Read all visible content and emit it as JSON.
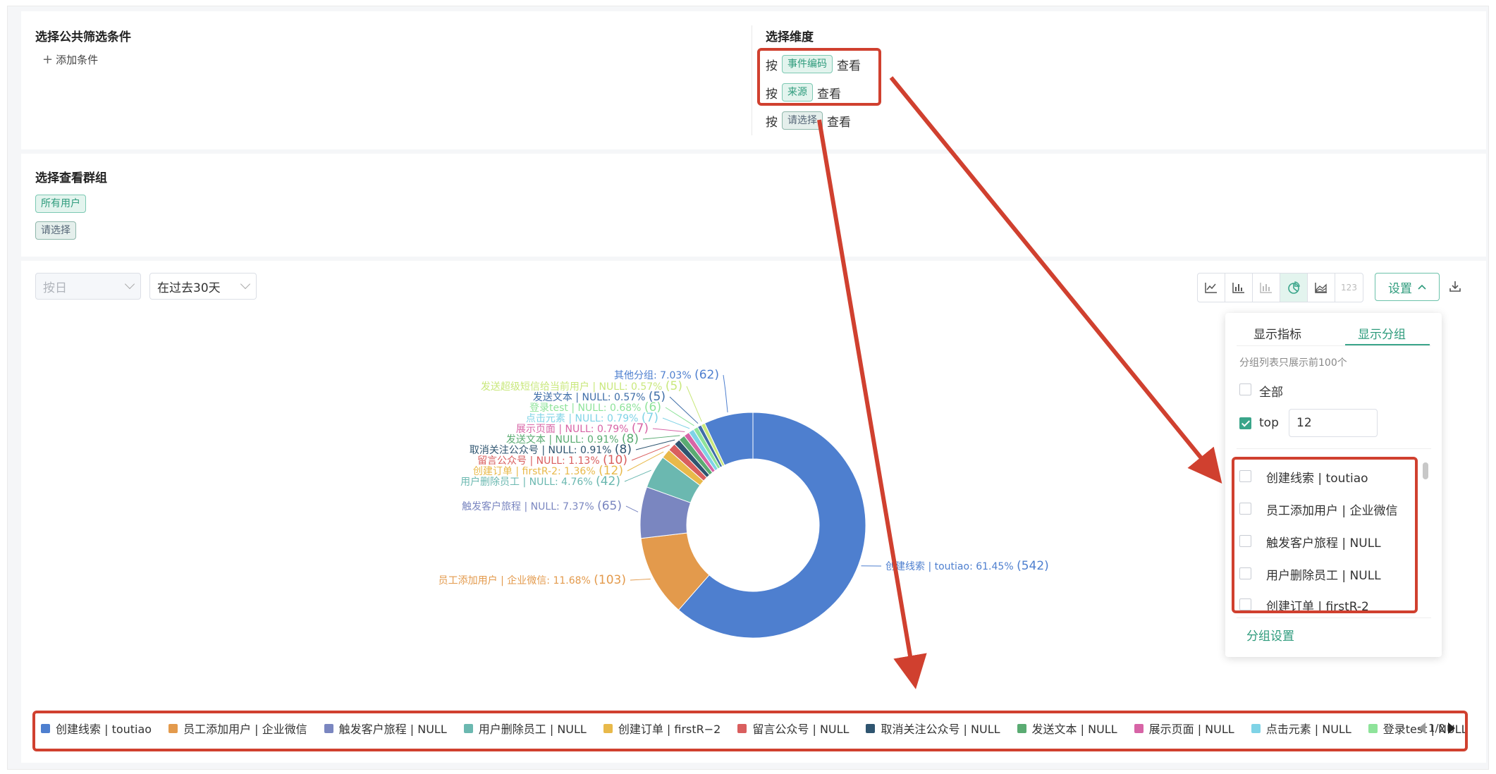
{
  "filters": {
    "title": "选择公共筛选条件",
    "add_label": "添加条件"
  },
  "dimensions": {
    "title": "选择维度",
    "rows": [
      {
        "prefix": "按",
        "tag": "事件编码",
        "suffix": "查看"
      },
      {
        "prefix": "按",
        "tag": "来源",
        "suffix": "查看"
      },
      {
        "prefix": "按",
        "tag": "请选择",
        "suffix": "查看"
      }
    ]
  },
  "groups": {
    "title": "选择查看群组",
    "items": [
      "所有用户",
      "请选择"
    ]
  },
  "toolbar": {
    "granularity": "按日",
    "time_range": "在过去30天",
    "chart_types": [
      "line-chart-icon",
      "bar-chart-icon",
      "stacked-bar-icon",
      "pie-chart-icon",
      "area-chart-icon",
      "number-icon"
    ],
    "number_label": "123",
    "active_chart": "pie-chart-icon",
    "settings_label": "设置",
    "download_icon": "download-icon"
  },
  "settings_dropdown": {
    "tabs": [
      "显示指标",
      "显示分组"
    ],
    "active_tab": "显示分组",
    "hint": "分组列表只展示前100个",
    "all_label": "全部",
    "all_checked": false,
    "top_label": "top",
    "top_checked": true,
    "top_value": "12",
    "group_items": [
      "创建线索 | toutiao",
      "员工添加用户 | 企业微信",
      "触发客户旅程 | NULL",
      "用户删除员工 | NULL",
      "创建订单 | firstR-2"
    ],
    "footer_link": "分组设置"
  },
  "chart_data": {
    "type": "pie",
    "title": "",
    "donut": true,
    "slices": [
      {
        "label": "创建线索 | toutiao: 61.45%",
        "count": "(542)",
        "percent": 61.45,
        "value": 542,
        "color": "#4e7fcf"
      },
      {
        "label": "员工添加用户 | 企业微信: 11.68%",
        "count": "(103)",
        "percent": 11.68,
        "value": 103,
        "color": "#e39a4c"
      },
      {
        "label": "触发客户旅程 | NULL: 7.37%",
        "count": "(65)",
        "percent": 7.37,
        "value": 65,
        "color": "#7a86c0"
      },
      {
        "label": "用户删除员工 | NULL: 4.76%",
        "count": "(42)",
        "percent": 4.76,
        "value": 42,
        "color": "#6bb8b0"
      },
      {
        "label": "创建订单 | firstR-2: 1.36%",
        "count": "(12)",
        "percent": 1.36,
        "value": 12,
        "color": "#e8b94a"
      },
      {
        "label": "留言公众号 | NULL: 1.13%",
        "count": "(10)",
        "percent": 1.13,
        "value": 10,
        "color": "#d95e5e"
      },
      {
        "label": "取消关注公众号 | NULL: 0.91%",
        "count": "(8)",
        "percent": 0.91,
        "value": 8,
        "color": "#2f5570"
      },
      {
        "label": "发送文本 | NULL: 0.91%",
        "count": "(8)",
        "percent": 0.91,
        "value": 8,
        "color": "#5aab72"
      },
      {
        "label": "展示页面 | NULL: 0.79%",
        "count": "(7)",
        "percent": 0.79,
        "value": 7,
        "color": "#d764a6"
      },
      {
        "label": "点击元素 | NULL: 0.79%",
        "count": "(7)",
        "percent": 0.79,
        "value": 7,
        "color": "#7fd3e6"
      },
      {
        "label": "登录test | NULL: 0.68%",
        "count": "(6)",
        "percent": 0.68,
        "value": 6,
        "color": "#8ee39a"
      },
      {
        "label": "发送文本 | NULL: 0.57%",
        "count": "(5)",
        "percent": 0.57,
        "value": 5,
        "color": "#3f6ea8"
      },
      {
        "label": "发送超级短信给当前用户 | NULL: 0.57%",
        "count": "(5)",
        "percent": 0.57,
        "value": 5,
        "color": "#c9e87c"
      },
      {
        "label": "其他分组: 7.03%",
        "count": "(62)",
        "percent": 7.03,
        "value": 62,
        "color": "#4e7fcf"
      }
    ],
    "legend": [
      {
        "label": "创建线索 | toutiao",
        "color": "#4e7fcf"
      },
      {
        "label": "员工添加用户 | 企业微信",
        "color": "#e39a4c"
      },
      {
        "label": "触发客户旅程 | NULL",
        "color": "#7a86c0"
      },
      {
        "label": "用户删除员工 | NULL",
        "color": "#6bb8b0"
      },
      {
        "label": "创建订单 | firstR−2",
        "color": "#e8b94a"
      },
      {
        "label": "留言公众号 | NULL",
        "color": "#d95e5e"
      },
      {
        "label": "取消关注公众号 | NULL",
        "color": "#2f5570"
      },
      {
        "label": "发送文本 | NULL",
        "color": "#5aab72"
      },
      {
        "label": "展示页面 | NULL",
        "color": "#d764a6"
      },
      {
        "label": "点击元素 | NULL",
        "color": "#7fd3e6"
      },
      {
        "label": "登录test | NULL",
        "color": "#8ee39a"
      }
    ],
    "legend_page": "1/2"
  },
  "colors": {
    "accent": "#3aa58a",
    "annotation_red": "#d0402f"
  }
}
